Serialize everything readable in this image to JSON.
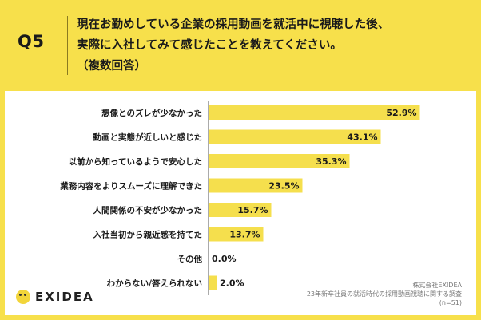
{
  "header": {
    "q_number": "Q5",
    "question_lines": [
      "現在お勤めしている企業の採用動画を就活中に視聴した後、",
      "実際に入社してみて感じたことを教えてください。",
      "（複数回答）"
    ]
  },
  "chart_data": {
    "type": "bar",
    "orientation": "horizontal",
    "title": "現在お勤めしている企業の採用動画を就活中に視聴した後、実際に入社してみて感じたことを教えてください。（複数回答）",
    "categories": [
      "想像とのズレが少なかった",
      "動画と実態が近しいと感じた",
      "以前から知っているようで安心した",
      "業務内容をよりスムーズに理解できた",
      "人間関係の不安が少なかった",
      "入社当初から親近感を持てた",
      "その他",
      "わからない/答えられない"
    ],
    "values": [
      52.9,
      43.1,
      35.3,
      23.5,
      15.7,
      13.7,
      0.0,
      2.0
    ],
    "value_labels": [
      "52.9%",
      "43.1%",
      "35.3%",
      "23.5%",
      "15.7%",
      "13.7%",
      "0.0%",
      "2.0%"
    ],
    "unit": "%",
    "xlim": [
      0,
      60
    ],
    "bar_color": "#f5df4d"
  },
  "footer": {
    "company": "株式会社EXIDEA",
    "survey": "23年新卒社員の就活時代の採用動画視聴に関する調査",
    "sample": "(n=51)"
  },
  "logo": {
    "text": "EXIDEA"
  }
}
